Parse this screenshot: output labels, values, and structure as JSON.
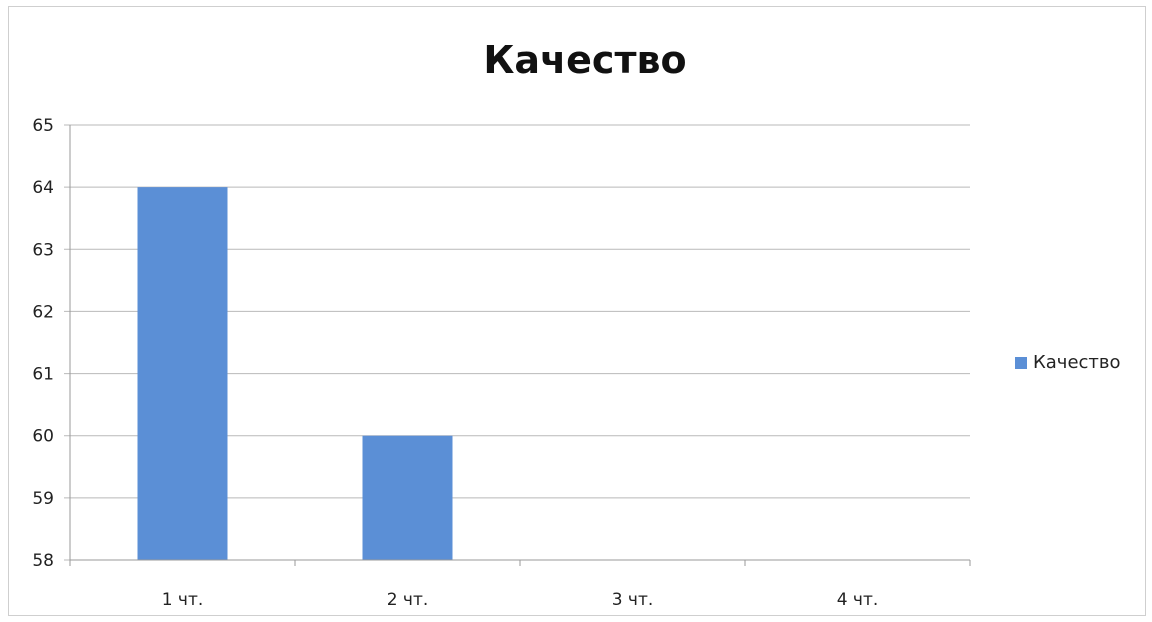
{
  "chart_data": {
    "type": "bar",
    "title": "Качество",
    "categories": [
      "1 чт.",
      "2 чт.",
      "3 чт.",
      "4 чт."
    ],
    "series": [
      {
        "name": "Качество",
        "values": [
          64,
          60,
          null,
          null
        ],
        "color": "#5b8fd6"
      }
    ],
    "ylim": [
      58,
      65
    ],
    "yticks": [
      58,
      59,
      60,
      61,
      62,
      63,
      64,
      65
    ],
    "grid": true,
    "legend_position": "right"
  }
}
